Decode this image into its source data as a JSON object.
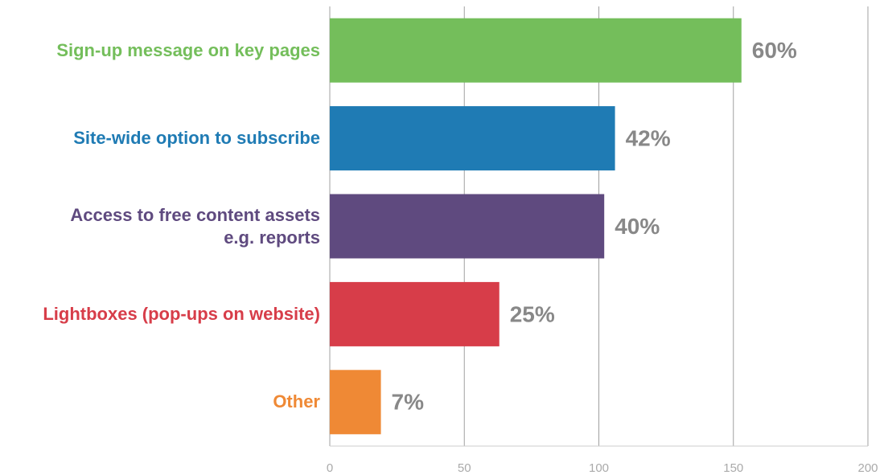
{
  "chart_data": {
    "type": "bar",
    "orientation": "horizontal",
    "categories": [
      "Sign-up message on key pages",
      "Site-wide option to subscribe",
      "Access to free content assets\ne.g. reports",
      "Lightboxes (pop-ups on website)",
      "Other"
    ],
    "values": [
      153,
      106,
      102,
      63,
      19
    ],
    "percent_labels": [
      "60%",
      "42%",
      "40%",
      "25%",
      "7%"
    ],
    "colors": [
      "#74be5b",
      "#1f7bb4",
      "#5f4a7f",
      "#d73d49",
      "#ef8935"
    ],
    "xlim": [
      0,
      200
    ],
    "xticks": [
      0,
      50,
      100,
      150,
      200
    ],
    "grid": true
  }
}
